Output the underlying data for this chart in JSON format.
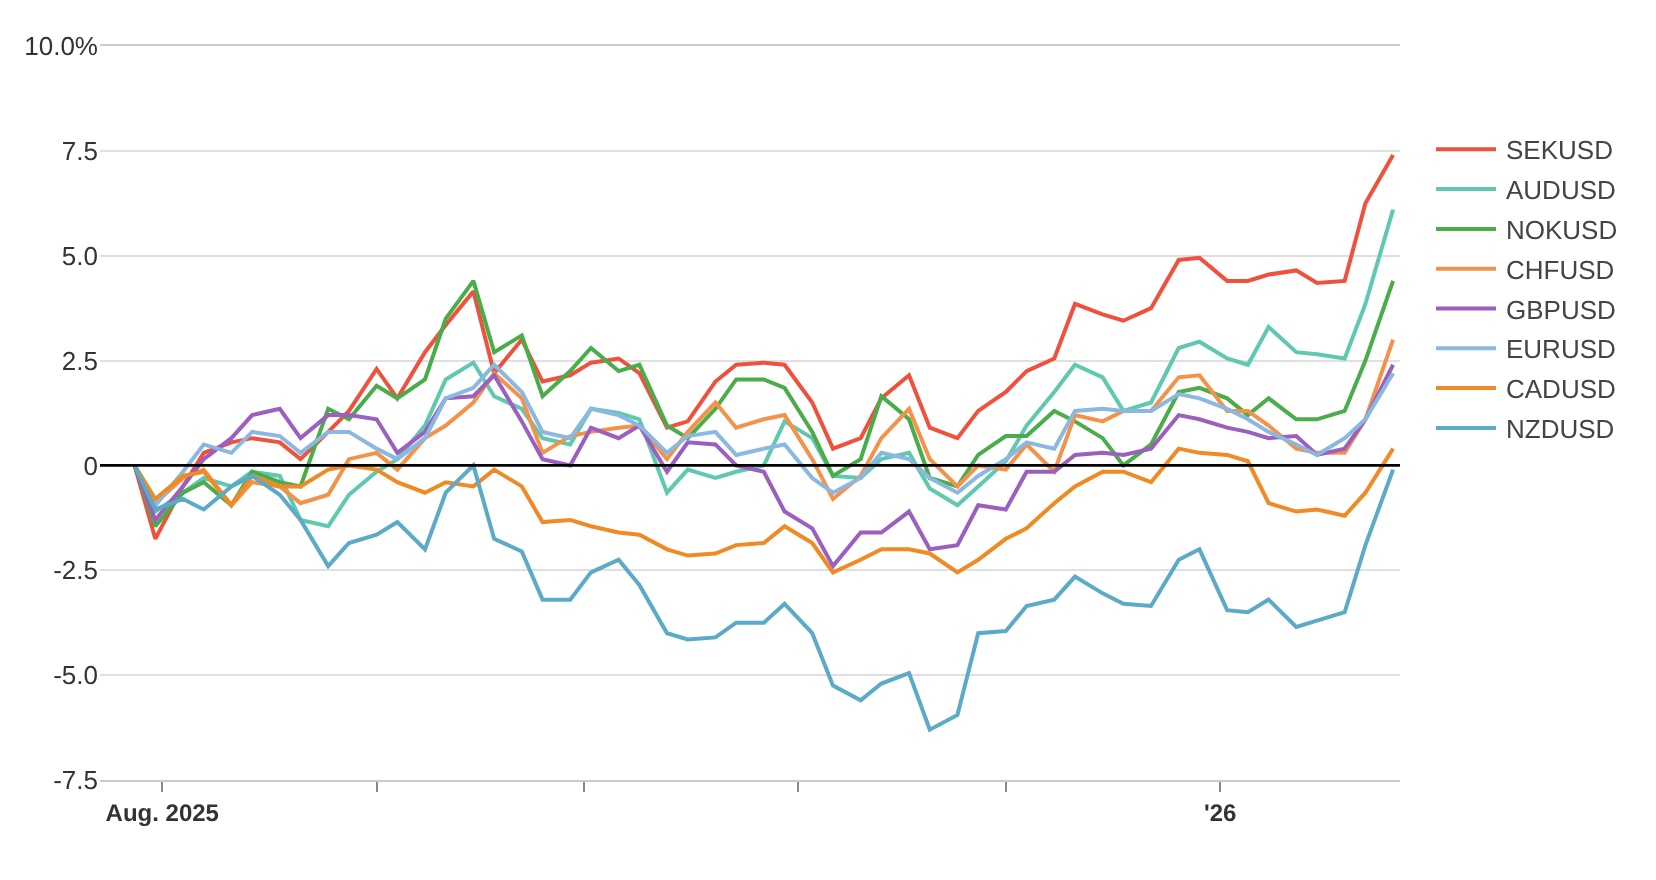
{
  "chart_data": {
    "type": "line",
    "x": [
      "2025-07-28",
      "2025-07-31",
      "2025-08-04",
      "2025-08-07",
      "2025-08-11",
      "2025-08-14",
      "2025-08-18",
      "2025-08-21",
      "2025-08-25",
      "2025-08-28",
      "2025-09-01",
      "2025-09-04",
      "2025-09-08",
      "2025-09-11",
      "2025-09-15",
      "2025-09-18",
      "2025-09-22",
      "2025-09-25",
      "2025-09-29",
      "2025-10-02",
      "2025-10-06",
      "2025-10-09",
      "2025-10-13",
      "2025-10-16",
      "2025-10-20",
      "2025-10-23",
      "2025-10-27",
      "2025-10-30",
      "2025-11-03",
      "2025-11-06",
      "2025-11-10",
      "2025-11-13",
      "2025-11-17",
      "2025-11-20",
      "2025-11-24",
      "2025-11-27",
      "2025-12-01",
      "2025-12-04",
      "2025-12-08",
      "2025-12-11",
      "2025-12-15",
      "2025-12-18",
      "2025-12-22",
      "2025-12-26",
      "2025-12-29",
      "2026-01-02",
      "2026-01-05",
      "2026-01-08",
      "2026-01-12",
      "2026-01-15",
      "2026-01-19",
      "2026-01-22",
      "2026-01-26"
    ],
    "series": [
      {
        "name": "SEKUSD",
        "color": "#f0513c",
        "values": [
          0,
          -1.75,
          -0.5,
          0.3,
          0.55,
          0.65,
          0.55,
          0.15,
          0.8,
          1.3,
          2.3,
          1.6,
          2.7,
          3.35,
          4.15,
          2.2,
          3.0,
          2.0,
          2.15,
          2.45,
          2.55,
          2.2,
          0.9,
          1.05,
          2.0,
          2.4,
          2.45,
          2.4,
          1.5,
          0.4,
          0.65,
          1.6,
          2.15,
          0.9,
          0.65,
          1.3,
          1.75,
          2.25,
          2.55,
          3.85,
          3.6,
          3.45,
          3.75,
          4.9,
          4.95,
          4.4,
          4.4,
          4.55,
          4.65,
          4.35,
          4.4,
          6.25,
          7.4
        ]
      },
      {
        "name": "AUDUSD",
        "color": "#5fc9b0",
        "values": [
          0,
          -1.1,
          -0.65,
          -0.3,
          -0.5,
          -0.15,
          -0.25,
          -1.3,
          -1.45,
          -0.7,
          -0.15,
          0.15,
          0.95,
          2.05,
          2.45,
          1.65,
          1.35,
          0.65,
          0.5,
          1.35,
          1.25,
          1.1,
          -0.65,
          -0.1,
          -0.3,
          -0.15,
          0,
          1.05,
          0.65,
          -0.25,
          -0.3,
          0.15,
          0.3,
          -0.55,
          -0.95,
          -0.5,
          0.1,
          0.95,
          1.75,
          2.4,
          2.1,
          1.3,
          1.5,
          2.8,
          2.95,
          2.55,
          2.4,
          3.3,
          2.7,
          2.65,
          2.55,
          3.85,
          6.1
        ]
      },
      {
        "name": "NOKUSD",
        "color": "#4aad4a",
        "values": [
          0,
          -1.45,
          -0.65,
          -0.4,
          -0.95,
          -0.15,
          -0.4,
          -0.5,
          1.35,
          1.1,
          1.9,
          1.6,
          2.05,
          3.5,
          4.4,
          2.7,
          3.1,
          1.65,
          2.25,
          2.8,
          2.25,
          2.4,
          0.95,
          0.65,
          1.35,
          2.05,
          2.05,
          1.85,
          0.8,
          -0.25,
          0.15,
          1.65,
          1.1,
          -0.3,
          -0.5,
          0.25,
          0.7,
          0.7,
          1.3,
          1.05,
          0.65,
          0,
          0.5,
          1.75,
          1.85,
          1.6,
          1.2,
          1.6,
          1.1,
          1.1,
          1.3,
          2.5,
          4.4
        ]
      },
      {
        "name": "CHFUSD",
        "color": "#f5924a",
        "values": [
          0,
          -0.9,
          -0.3,
          -0.1,
          -0.95,
          -0.4,
          -0.5,
          -0.9,
          -0.7,
          0.15,
          0.3,
          -0.1,
          0.65,
          0.95,
          1.5,
          2.2,
          1.6,
          0.3,
          0.7,
          0.8,
          0.9,
          0.95,
          0.15,
          0.8,
          1.5,
          0.9,
          1.1,
          1.2,
          0.15,
          -0.8,
          -0.25,
          0.65,
          1.35,
          0.15,
          -0.5,
          0,
          -0.1,
          0.5,
          -0.15,
          1.2,
          1.05,
          1.3,
          1.3,
          2.1,
          2.15,
          1.3,
          1.3,
          0.95,
          0.4,
          0.3,
          0.3,
          1.1,
          3.0
        ]
      },
      {
        "name": "GBPUSD",
        "color": "#9b5fc0",
        "values": [
          0,
          -1.3,
          -0.5,
          0.15,
          0.65,
          1.2,
          1.35,
          0.65,
          1.2,
          1.2,
          1.1,
          0.3,
          0.8,
          1.6,
          1.65,
          2.15,
          1.05,
          0.15,
          0,
          0.9,
          0.65,
          0.95,
          -0.15,
          0.55,
          0.5,
          0,
          -0.15,
          -1.1,
          -1.5,
          -2.4,
          -1.6,
          -1.6,
          -1.1,
          -2.0,
          -1.9,
          -0.95,
          -1.05,
          -0.15,
          -0.15,
          0.25,
          0.3,
          0.25,
          0.4,
          1.2,
          1.1,
          0.9,
          0.8,
          0.65,
          0.7,
          0.25,
          0.4,
          1.1,
          2.4
        ]
      },
      {
        "name": "EURUSD",
        "color": "#8ab8e0",
        "values": [
          0,
          -0.95,
          -0.15,
          0.5,
          0.3,
          0.8,
          0.7,
          0.3,
          0.8,
          0.8,
          0.4,
          0.15,
          0.65,
          1.6,
          1.85,
          2.4,
          1.75,
          0.8,
          0.65,
          1.35,
          1.2,
          0.95,
          0.3,
          0.7,
          0.8,
          0.25,
          0.4,
          0.5,
          -0.3,
          -0.65,
          -0.3,
          0.3,
          0.15,
          -0.3,
          -0.65,
          -0.25,
          0.15,
          0.55,
          0.4,
          1.3,
          1.35,
          1.3,
          1.3,
          1.7,
          1.6,
          1.35,
          1.1,
          0.8,
          0.5,
          0.25,
          0.65,
          1.1,
          2.2
        ]
      },
      {
        "name": "CADUSD",
        "color": "#f08a24",
        "values": [
          0,
          -0.8,
          -0.25,
          -0.15,
          -0.95,
          -0.25,
          -0.5,
          -0.5,
          -0.1,
          0,
          -0.1,
          -0.4,
          -0.65,
          -0.4,
          -0.5,
          -0.1,
          -0.5,
          -1.35,
          -1.3,
          -1.45,
          -1.6,
          -1.65,
          -2.0,
          -2.15,
          -2.1,
          -1.9,
          -1.85,
          -1.45,
          -1.85,
          -2.55,
          -2.25,
          -2.0,
          -2.0,
          -2.1,
          -2.55,
          -2.25,
          -1.75,
          -1.5,
          -0.9,
          -0.5,
          -0.15,
          -0.15,
          -0.4,
          0.4,
          0.3,
          0.25,
          0.1,
          -0.9,
          -1.1,
          -1.05,
          -1.2,
          -0.65,
          0.4
        ]
      },
      {
        "name": "NZDUSD",
        "color": "#5aaac8",
        "values": [
          0,
          -1.05,
          -0.8,
          -1.05,
          -0.5,
          -0.25,
          -0.7,
          -1.3,
          -2.4,
          -1.85,
          -1.65,
          -1.35,
          -2.0,
          -0.65,
          0,
          -1.75,
          -2.05,
          -3.2,
          -3.2,
          -2.55,
          -2.25,
          -2.85,
          -4.0,
          -4.15,
          -4.1,
          -3.75,
          -3.75,
          -3.3,
          -4.0,
          -5.25,
          -5.6,
          -5.2,
          -4.95,
          -6.3,
          -5.95,
          -4.0,
          -3.95,
          -3.35,
          -3.2,
          -2.65,
          -3.05,
          -3.3,
          -3.35,
          -2.25,
          -2.0,
          -3.45,
          -3.5,
          -3.2,
          -3.85,
          -3.7,
          -3.5,
          -1.9,
          -0.1
        ]
      }
    ],
    "xlim": [
      "2025-07-23",
      "2026-01-27"
    ],
    "xticks": [
      {
        "value": "2025-08-01",
        "label": "Aug. 2025"
      },
      {
        "value": "2025-09-01",
        "label": null
      },
      {
        "value": "2025-10-01",
        "label": null
      },
      {
        "value": "2025-11-01",
        "label": null
      },
      {
        "value": "2025-12-01",
        "label": null
      },
      {
        "value": "2026-01-01",
        "label": "'26"
      }
    ],
    "ylim": [
      -7.5,
      10
    ],
    "yticks": [
      {
        "value": 10,
        "label": "10.0%"
      },
      7.5,
      {
        "value": 5,
        "label": "5.0"
      },
      2.5,
      0,
      -2.5,
      {
        "value": -5,
        "label": "-5.0"
      },
      -7.5
    ],
    "ref_lines": [
      {
        "axis": "y",
        "value": 0,
        "color": "#000000"
      }
    ],
    "grid": "y",
    "legend": "right"
  }
}
